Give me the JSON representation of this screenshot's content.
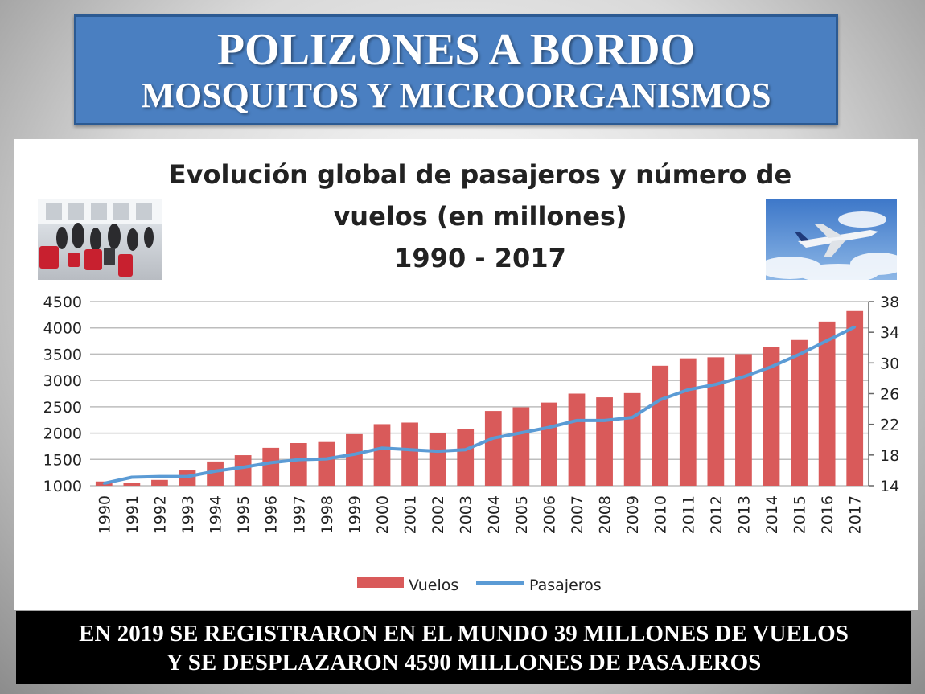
{
  "header": {
    "title": "POLIZONES A BORDO",
    "subtitle": "MOSQUITOS Y MICROORGANISMOS"
  },
  "footer": {
    "line1": "EN 2019 SE REGISTRARON EN EL MUNDO 39 MILLONES DE VUELOS",
    "line2": "Y SE DESPLAZARON 4590 MILLONES DE PASAJEROS"
  },
  "chart_data": {
    "type": "bar",
    "title_lines": [
      "Evolución global de pasajeros y número de",
      "vuelos (en millones)",
      "1990 - 2017"
    ],
    "categories": [
      "1990",
      "1991",
      "1992",
      "1993",
      "1994",
      "1995",
      "1996",
      "1997",
      "1998",
      "1999",
      "2000",
      "2001",
      "2002",
      "2003",
      "2004",
      "2005",
      "2006",
      "2007",
      "2008",
      "2009",
      "2010",
      "2011",
      "2012",
      "2013",
      "2014",
      "2015",
      "2016",
      "2017"
    ],
    "series": [
      {
        "name": "Vuelos",
        "type": "bar",
        "axis": "left",
        "color": "#d95a5a",
        "values": [
          1080,
          1050,
          1110,
          1290,
          1460,
          1580,
          1720,
          1810,
          1830,
          1980,
          2170,
          2200,
          2000,
          2070,
          2420,
          2490,
          2580,
          2750,
          2680,
          2760,
          3280,
          3420,
          3440,
          3500,
          3640,
          3770,
          4120,
          4320
        ]
      },
      {
        "name": "Pasajeros",
        "type": "line",
        "axis": "right",
        "color": "#5b9bd5",
        "values": [
          14.3,
          15.1,
          15.2,
          15.2,
          15.9,
          16.4,
          17.0,
          17.4,
          17.5,
          18.1,
          18.9,
          18.7,
          18.5,
          18.7,
          20.2,
          20.9,
          21.6,
          22.5,
          22.5,
          22.9,
          25.2,
          26.5,
          27.2,
          28.2,
          29.5,
          31.1,
          32.9,
          34.7
        ]
      }
    ],
    "y_left": {
      "ticks": [
        1000,
        1500,
        2000,
        2500,
        3000,
        3500,
        4000,
        4500
      ],
      "range": [
        1000,
        4500
      ]
    },
    "y_right": {
      "ticks": [
        14,
        18,
        22,
        26,
        30,
        34,
        38
      ],
      "range": [
        14,
        38
      ]
    },
    "grid": true,
    "legend_position": "bottom"
  }
}
